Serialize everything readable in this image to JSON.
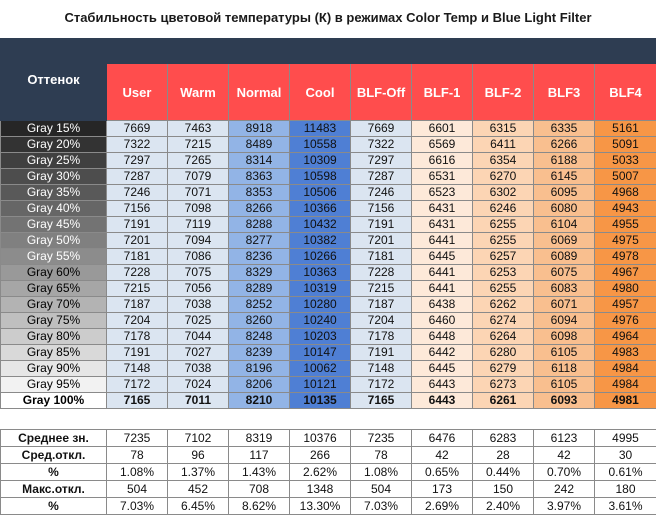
{
  "title": "Стабильность цветовой температуры (К) в режимах Color Temp и Blue Light Filter",
  "chart_data": {
    "type": "table",
    "row_header": "Оттенок",
    "columns": [
      "User",
      "Warm",
      "Normal",
      "Cool",
      "BLF-Off",
      "BLF-1",
      "BLF-2",
      "BLF3",
      "BLF4"
    ],
    "rows": [
      {
        "label": "Gray 15%",
        "values": [
          "7669",
          "7463",
          "8918",
          "11483",
          "7669",
          "6601",
          "6315",
          "6335",
          "5161"
        ]
      },
      {
        "label": "Gray 20%",
        "values": [
          "7322",
          "7215",
          "8489",
          "10558",
          "7322",
          "6569",
          "6411",
          "6266",
          "5091"
        ]
      },
      {
        "label": "Gray 25%",
        "values": [
          "7297",
          "7265",
          "8314",
          "10309",
          "7297",
          "6616",
          "6354",
          "6188",
          "5033"
        ]
      },
      {
        "label": "Gray 30%",
        "values": [
          "7287",
          "7079",
          "8363",
          "10598",
          "7287",
          "6531",
          "6270",
          "6145",
          "5007"
        ]
      },
      {
        "label": "Gray 35%",
        "values": [
          "7246",
          "7071",
          "8353",
          "10506",
          "7246",
          "6523",
          "6302",
          "6095",
          "4968"
        ]
      },
      {
        "label": "Gray 40%",
        "values": [
          "7156",
          "7098",
          "8266",
          "10366",
          "7156",
          "6431",
          "6246",
          "6080",
          "4943"
        ]
      },
      {
        "label": "Gray 45%",
        "values": [
          "7191",
          "7119",
          "8288",
          "10432",
          "7191",
          "6431",
          "6255",
          "6104",
          "4955"
        ]
      },
      {
        "label": "Gray 50%",
        "values": [
          "7201",
          "7094",
          "8277",
          "10382",
          "7201",
          "6441",
          "6255",
          "6069",
          "4975"
        ]
      },
      {
        "label": "Gray 55%",
        "values": [
          "7181",
          "7086",
          "8236",
          "10266",
          "7181",
          "6445",
          "6257",
          "6089",
          "4978"
        ]
      },
      {
        "label": "Gray 60%",
        "values": [
          "7228",
          "7075",
          "8329",
          "10363",
          "7228",
          "6441",
          "6253",
          "6075",
          "4967"
        ]
      },
      {
        "label": "Gray 65%",
        "values": [
          "7215",
          "7056",
          "8289",
          "10319",
          "7215",
          "6441",
          "6255",
          "6083",
          "4980"
        ]
      },
      {
        "label": "Gray 70%",
        "values": [
          "7187",
          "7038",
          "8252",
          "10280",
          "7187",
          "6438",
          "6262",
          "6071",
          "4957"
        ]
      },
      {
        "label": "Gray 75%",
        "values": [
          "7204",
          "7025",
          "8260",
          "10240",
          "7204",
          "6460",
          "6274",
          "6094",
          "4976"
        ]
      },
      {
        "label": "Gray 80%",
        "values": [
          "7178",
          "7044",
          "8248",
          "10203",
          "7178",
          "6448",
          "6264",
          "6098",
          "4964"
        ]
      },
      {
        "label": "Gray 85%",
        "values": [
          "7191",
          "7027",
          "8239",
          "10147",
          "7191",
          "6442",
          "6280",
          "6105",
          "4983"
        ]
      },
      {
        "label": "Gray 90%",
        "values": [
          "7148",
          "7038",
          "8196",
          "10062",
          "7148",
          "6445",
          "6279",
          "6118",
          "4984"
        ]
      },
      {
        "label": "Gray 95%",
        "values": [
          "7172",
          "7024",
          "8206",
          "10121",
          "7172",
          "6443",
          "6273",
          "6105",
          "4984"
        ]
      },
      {
        "label": "Gray 100%",
        "values": [
          "7165",
          "7011",
          "8210",
          "10135",
          "7165",
          "6443",
          "6261",
          "6093",
          "4981"
        ],
        "bold": true
      }
    ],
    "stats": [
      {
        "label": "Среднее зн.",
        "values": [
          "7235",
          "7102",
          "8319",
          "10376",
          "7235",
          "6476",
          "6283",
          "6123",
          "4995"
        ]
      },
      {
        "label": "Сред.откл.",
        "values": [
          "78",
          "96",
          "117",
          "266",
          "78",
          "42",
          "28",
          "42",
          "30"
        ]
      },
      {
        "label": "%",
        "values": [
          "1.08%",
          "1.37%",
          "1.43%",
          "2.62%",
          "1.08%",
          "0.65%",
          "0.44%",
          "0.70%",
          "0.61%"
        ]
      },
      {
        "label": "Макс.откл.",
        "values": [
          "504",
          "452",
          "708",
          "1348",
          "504",
          "173",
          "150",
          "242",
          "180"
        ]
      },
      {
        "label": "%",
        "values": [
          "7.03%",
          "6.45%",
          "8.62%",
          "13.30%",
          "7.03%",
          "2.69%",
          "2.40%",
          "3.97%",
          "3.61%"
        ]
      }
    ]
  },
  "colors": {
    "header_dark": "#2e3d52",
    "header_red": "#ff4d4d",
    "column_fills": [
      "#dbe5f1",
      "#dbe5f1",
      "#92b4e6",
      "#4f7fd4",
      "#dbe5f1",
      "#fde9d9",
      "#fcd5b4",
      "#f9bf8f",
      "#f79646"
    ]
  }
}
